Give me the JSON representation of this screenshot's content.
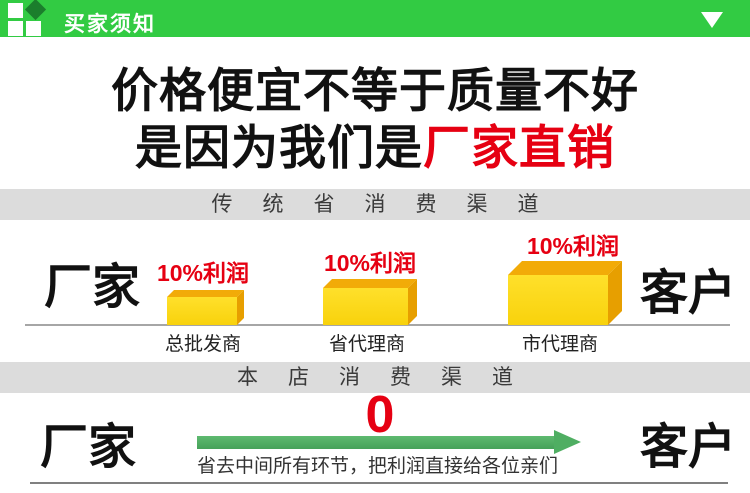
{
  "colors": {
    "header_green": "#32cb43",
    "logo_dark_green": "#1b7e2c",
    "accent_red": "#e60012",
    "box_front_yellow": "#f8d20c",
    "box_top_orange": "#f2ab08",
    "box_side_orange": "#e79f00",
    "arrow_green": "#4fae62",
    "section_bar_gray": "#dcdcdc"
  },
  "icons": {
    "logo": "grid-diamond-logo",
    "collapse": "triangle-down",
    "arrow": "arrow-right"
  },
  "header": {
    "title": "买家须知"
  },
  "headline": {
    "line1": "价格便宜不等于质量不好",
    "line2_black": "是因为我们是",
    "line2_red": "厂家直销"
  },
  "traditional": {
    "bar_title": "传统省消费渠道",
    "left": "厂家",
    "right": "客户",
    "steps": [
      {
        "profit": "10%利润",
        "label": "总批发商"
      },
      {
        "profit": "10%利润",
        "label": "省代理商"
      },
      {
        "profit": "10%利润",
        "label": "市代理商"
      }
    ]
  },
  "direct": {
    "bar_title": "本店消费渠道",
    "left": "厂家",
    "right": "客户",
    "zero": "0",
    "caption": "省去中间所有环节，把利润直接给各位亲们"
  }
}
